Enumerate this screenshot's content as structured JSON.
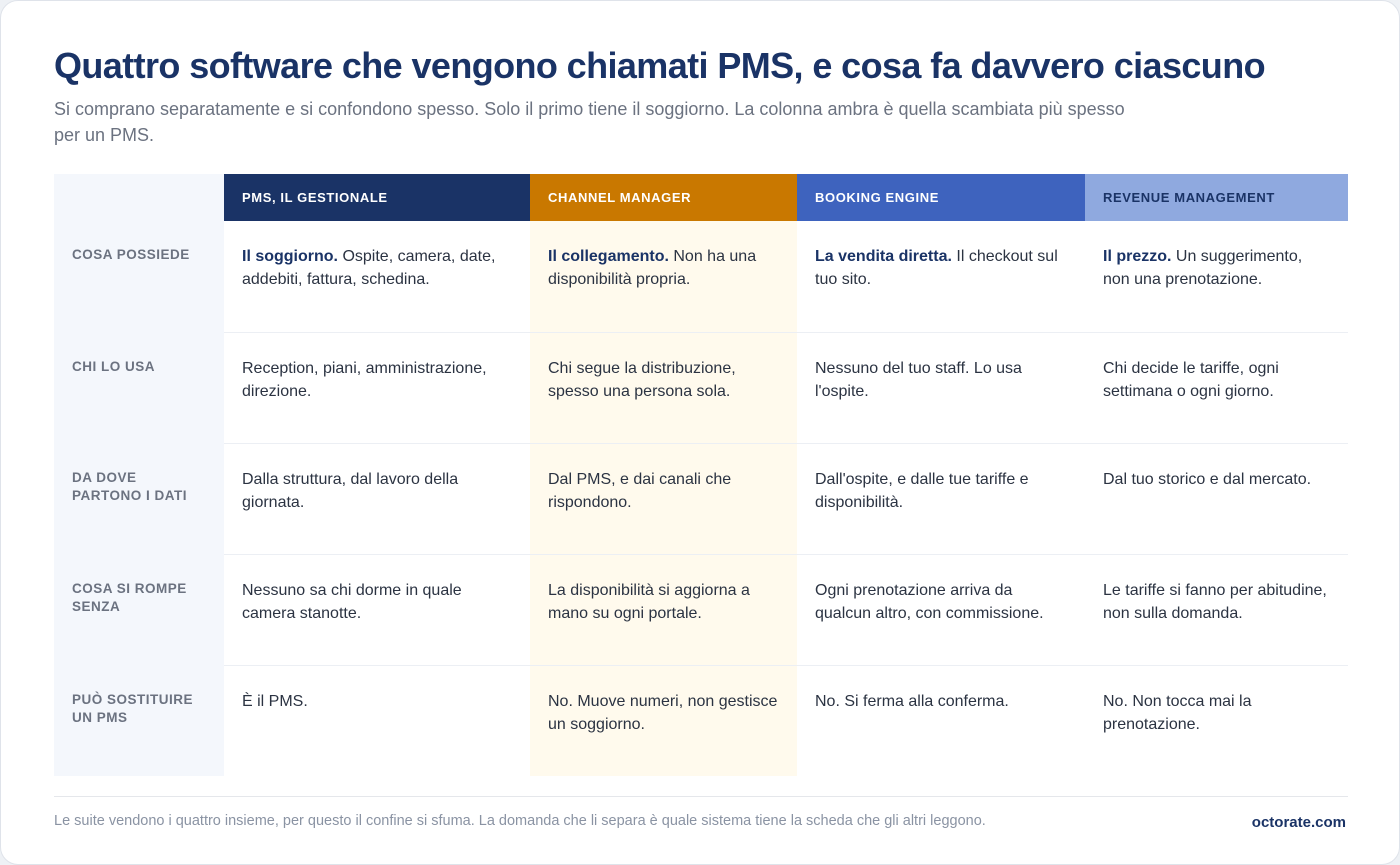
{
  "title": "Quattro software che vengono chiamati PMS, e cosa fa davvero ciascuno",
  "subtitle": "Si comprano separatamente e si confondono spesso. Solo il primo tiene il soggiorno. La colonna ambra è quella scambiata più spesso per un PMS.",
  "columns": [
    {
      "label": "PMS, il gestionale",
      "color": "#1a3366"
    },
    {
      "label": "Channel manager",
      "color": "#c97800"
    },
    {
      "label": "Booking engine",
      "color": "#3e63be"
    },
    {
      "label": "Revenue management",
      "color": "#8fa9df"
    }
  ],
  "rows": [
    {
      "label": "Cosa possiede",
      "cells": [
        {
          "strong": "Il soggiorno.",
          "text": " Ospite, camera, date, addebiti, fattura, schedina."
        },
        {
          "strong": "Il collegamento.",
          "text": " Non ha una disponibilità propria."
        },
        {
          "strong": "La vendita diretta.",
          "text": " Il checkout sul tuo sito."
        },
        {
          "strong": "Il prezzo.",
          "text": " Un suggerimento, non una prenotazione."
        }
      ]
    },
    {
      "label": "Chi lo usa",
      "cells": [
        {
          "strong": "",
          "text": "Reception, piani, amministrazione, direzione."
        },
        {
          "strong": "",
          "text": "Chi segue la distribuzione, spesso una persona sola."
        },
        {
          "strong": "",
          "text": "Nessuno del tuo staff. Lo usa l'ospite."
        },
        {
          "strong": "",
          "text": "Chi decide le tariffe, ogni settimana o ogni giorno."
        }
      ]
    },
    {
      "label": "Da dove partono i dati",
      "cells": [
        {
          "strong": "",
          "text": "Dalla struttura, dal lavoro della giornata."
        },
        {
          "strong": "",
          "text": "Dal PMS, e dai canali che rispondono."
        },
        {
          "strong": "",
          "text": "Dall'ospite, e dalle tue tariffe e disponibilità."
        },
        {
          "strong": "",
          "text": "Dal tuo storico e dal mercato."
        }
      ]
    },
    {
      "label": "Cosa si rompe senza",
      "cells": [
        {
          "strong": "",
          "text": "Nessuno sa chi dorme in quale camera stanotte."
        },
        {
          "strong": "",
          "text": "La disponibilità si aggiorna a mano su ogni portale."
        },
        {
          "strong": "",
          "text": "Ogni prenotazione arriva da qualcun altro, con commissione."
        },
        {
          "strong": "",
          "text": "Le tariffe si fanno per abitudine, non sulla domanda."
        }
      ]
    },
    {
      "label": "Può sostituire un PMS",
      "cells": [
        {
          "strong": "",
          "text": "È il PMS."
        },
        {
          "strong": "",
          "text": "No. Muove numeri, non gestisce un soggiorno."
        },
        {
          "strong": "",
          "text": "No. Si ferma alla conferma."
        },
        {
          "strong": "",
          "text": "No. Non tocca mai la prenotazione."
        }
      ]
    }
  ],
  "highlight_color": "#fffaed",
  "footnote": "Le suite vendono i quattro insieme, per questo il confine si sfuma. La domanda che li separa è quale sistema tiene la scheda che gli altri leggono.",
  "brand": "octorate.com"
}
